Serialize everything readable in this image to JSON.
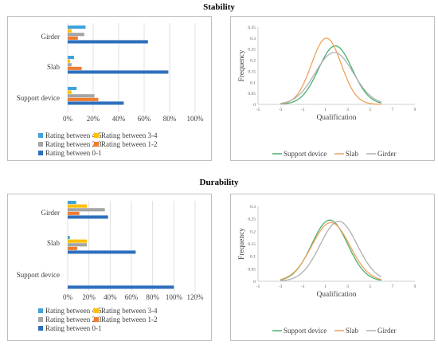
{
  "sections": [
    {
      "title": "Stability"
    },
    {
      "title": "Durability"
    }
  ],
  "colors": {
    "r45": "#3fa3d9",
    "r34": "#ffc000",
    "r23": "#a5a5a5",
    "r12": "#ed7d31",
    "r01": "#2e6fbd",
    "support": "#4caf70",
    "slab": "#f0a15c",
    "girder": "#b0b0b0",
    "grid": "#d9d9d9"
  },
  "chart_data": [
    {
      "type": "bar",
      "orientation": "horizontal",
      "categories": [
        "Girder",
        "Slab",
        "Support device"
      ],
      "series": [
        {
          "name": "Rating between 4-5",
          "values": [
            14,
            5,
            7
          ]
        },
        {
          "name": "Rating between 3-4",
          "values": [
            3,
            2,
            3
          ]
        },
        {
          "name": "Rating between 2-3",
          "values": [
            13,
            3,
            21
          ]
        },
        {
          "name": "Rating between 1-2",
          "values": [
            8,
            11,
            24
          ]
        },
        {
          "name": "Rating between 0-1",
          "values": [
            63,
            79,
            44
          ]
        }
      ],
      "x_ticks": [
        "0%",
        "20%",
        "40%",
        "60%",
        "80%",
        "100%"
      ],
      "xlim": [
        0,
        100
      ],
      "grid": true,
      "legend": "bottom"
    },
    {
      "type": "line",
      "ylabel": "Frequency",
      "xlabel": "Qualification",
      "xlim": [
        -5,
        9
      ],
      "ylim": [
        0,
        0.35
      ],
      "x_ticks": [
        "-5",
        "-3",
        "-1",
        "1",
        "3",
        "5",
        "7",
        "9"
      ],
      "y_ticks": [
        "0",
        "0.05",
        "0.1",
        "0.15",
        "0.2",
        "0.25",
        "0.3",
        "0.35"
      ],
      "series": [
        {
          "name": "Support device",
          "mean": 1.9,
          "peak": 0.265,
          "sd": 1.5
        },
        {
          "name": "Slab",
          "mean": 1.1,
          "peak": 0.3,
          "sd": 1.33
        },
        {
          "name": "Girder",
          "mean": 1.8,
          "peak": 0.235,
          "sd": 1.7
        }
      ],
      "legend": "bottom"
    },
    {
      "type": "bar",
      "orientation": "horizontal",
      "categories": [
        "Girder",
        "Slab",
        "Support device"
      ],
      "series": [
        {
          "name": "Rating between 4-5",
          "values": [
            8,
            2,
            0
          ]
        },
        {
          "name": "Rating between 3-4",
          "values": [
            18,
            18,
            0
          ]
        },
        {
          "name": "Rating between 2-3",
          "values": [
            35,
            18,
            0
          ]
        },
        {
          "name": "Rating between 1-2",
          "values": [
            11,
            9,
            0
          ]
        },
        {
          "name": "Rating between 0-1",
          "values": [
            38,
            64,
            100
          ]
        }
      ],
      "x_ticks": [
        "0%",
        "20%",
        "40%",
        "60%",
        "80%",
        "100%",
        "120%"
      ],
      "xlim": [
        0,
        120
      ],
      "grid": true,
      "legend": "bottom"
    },
    {
      "type": "line",
      "ylabel": "Frequency",
      "xlabel": "Qualification",
      "xlim": [
        -5,
        9
      ],
      "ylim": [
        0,
        0.3
      ],
      "x_ticks": [
        "-5",
        "-3",
        "-1",
        "1",
        "3",
        "5",
        "7",
        "9"
      ],
      "y_ticks": [
        "0",
        "0.05",
        "0.1",
        "0.15",
        "0.2",
        "0.25",
        "0.3"
      ],
      "series": [
        {
          "name": "Support device",
          "mean": 1.4,
          "peak": 0.245,
          "sd": 1.6
        },
        {
          "name": "Slab",
          "mean": 1.5,
          "peak": 0.235,
          "sd": 1.7
        },
        {
          "name": "Girder",
          "mean": 2.2,
          "peak": 0.24,
          "sd": 1.66
        }
      ],
      "legend": "bottom"
    }
  ]
}
